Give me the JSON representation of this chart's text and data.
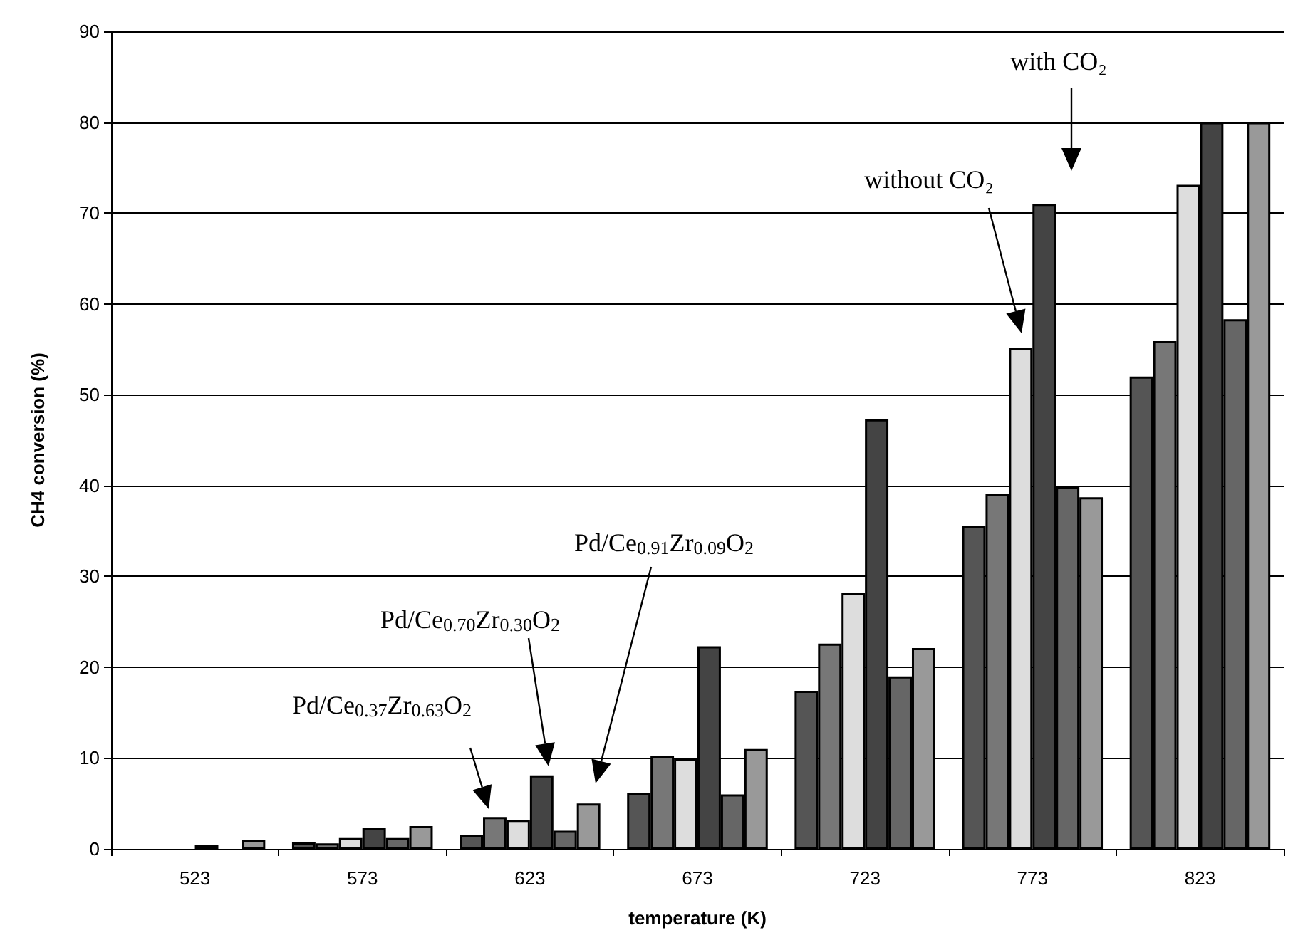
{
  "chart_data": {
    "type": "bar",
    "xlabel": "temperature (K)",
    "ylabel": "CH4 conversion (%)",
    "categories": [
      "523",
      "573",
      "623",
      "673",
      "723",
      "773",
      "823"
    ],
    "series": [
      {
        "color": "#555555",
        "values": [
          0,
          0.7,
          1.5,
          6.2,
          17.4,
          35.6,
          52.0
        ]
      },
      {
        "color": "#777777",
        "values": [
          0,
          0.6,
          3.5,
          10.2,
          22.6,
          39.1,
          55.9
        ]
      },
      {
        "color": "#dddddd",
        "values": [
          0,
          1.2,
          3.2,
          9.9,
          28.2,
          55.2,
          73.1
        ]
      },
      {
        "color": "#444444",
        "values": [
          0.4,
          2.3,
          8.1,
          22.3,
          47.3,
          71.0,
          80.0
        ]
      },
      {
        "color": "#666666",
        "values": [
          0,
          1.2,
          2.0,
          6.0,
          19.0,
          39.9,
          58.3
        ]
      },
      {
        "color": "#999999",
        "values": [
          1.0,
          2.5,
          5.0,
          11.0,
          22.1,
          38.7,
          80.0
        ]
      }
    ],
    "ylim": [
      0,
      90
    ],
    "yticks": [
      0,
      10,
      20,
      30,
      40,
      50,
      60,
      70,
      80,
      90
    ],
    "grid": "y",
    "annotations": [
      "with CO₂",
      "without CO₂",
      "Pd/Ce$_{0.37}$Zr$_{0.63}$O$_{2}$",
      "Pd/Ce$_{0.70}$Zr$_{0.30}$O$_{2}$",
      "Pd/Ce$_{0.91}$Zr$_{0.09}$O$_{2}$"
    ]
  }
}
